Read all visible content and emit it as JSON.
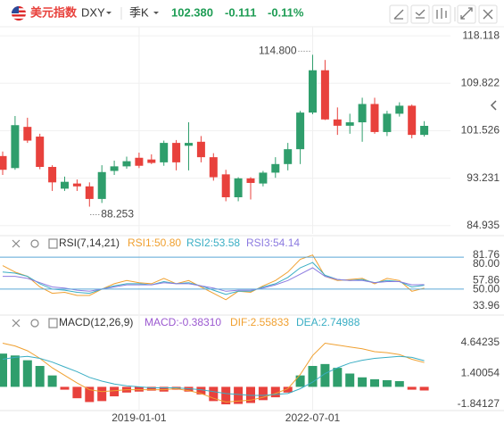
{
  "header": {
    "name": "美元指数",
    "symbol": "DXY",
    "period": "季K",
    "price": "102.380",
    "change": "-0.111",
    "change_pct": "-0.11%"
  },
  "chart_data": [
    {
      "type": "candlestick",
      "categories": [
        null,
        null,
        null,
        null,
        null,
        null,
        null,
        null,
        null,
        null,
        null,
        "2019-01-01",
        null,
        null,
        null,
        null,
        null,
        null,
        null,
        null,
        null,
        null,
        null,
        null,
        null,
        "2022-07-01",
        null,
        null,
        null,
        null,
        null,
        null,
        null,
        null,
        null
      ],
      "open": [
        97.1,
        95.0,
        102.2,
        100.5,
        95.2,
        91.4,
        92.3,
        91.8,
        89.6,
        94.5,
        95.3,
        96.8,
        96.5,
        96.0,
        99.4,
        98.9,
        99.6,
        96.9,
        93.9,
        89.9,
        93.2,
        92.3,
        94.2,
        95.7,
        98.3,
        104.7,
        112.1,
        103.5,
        102.4,
        103.0,
        106.2,
        101.3,
        104.5,
        105.9,
        100.8
      ],
      "high": [
        97.9,
        104.1,
        103.8,
        101.0,
        95.5,
        93.5,
        93.0,
        92.5,
        95.5,
        96.3,
        97.0,
        97.7,
        97.4,
        99.8,
        99.9,
        103.0,
        100.6,
        97.6,
        94.7,
        93.4,
        93.4,
        94.5,
        96.9,
        99.4,
        105.0,
        114.8,
        113.9,
        105.6,
        104.5,
        107.3,
        107.3,
        105.0,
        106.5,
        106.1,
        103.2
      ],
      "low": [
        93.8,
        94.7,
        99.4,
        94.8,
        91.0,
        91.0,
        91.0,
        88.253,
        88.9,
        93.8,
        94.9,
        95.0,
        95.7,
        95.4,
        94.6,
        94.6,
        96.0,
        92.8,
        89.2,
        89.2,
        89.5,
        91.8,
        93.3,
        94.6,
        95.7,
        104.4,
        103.4,
        100.8,
        101.0,
        99.6,
        101.0,
        100.6,
        104.0,
        100.2,
        100.5
      ],
      "close": [
        94.7,
        102.5,
        99.8,
        95.2,
        92.5,
        92.6,
        91.8,
        89.6,
        94.3,
        95.3,
        96.2,
        95.4,
        95.9,
        99.4,
        96.0,
        99.4,
        96.9,
        93.4,
        89.9,
        93.2,
        92.4,
        94.2,
        95.7,
        98.3,
        104.7,
        112.1,
        103.5,
        102.4,
        103.0,
        106.2,
        101.3,
        104.5,
        105.9,
        100.8,
        102.38
      ],
      "up_color": "#2f9e6c",
      "down_color": "#e8413c",
      "ylim": [
        83.5,
        119.7
      ],
      "yticks": [
        118.118,
        109.822,
        101.526,
        93.231,
        84.935
      ],
      "grid": true,
      "annotations": [
        "114.800",
        "88.253"
      ]
    },
    {
      "type": "line",
      "title": "RSI(7,14,21)",
      "series": [
        {
          "name": "RSI1:50.80",
          "color": "#f0a030",
          "values": [
            72,
            66,
            62,
            52,
            46,
            47,
            44,
            44,
            50,
            55,
            58,
            56,
            55,
            60,
            55,
            58,
            52,
            46,
            40,
            48,
            47,
            53,
            58,
            66,
            78,
            82,
            62,
            58,
            59,
            60,
            55,
            60,
            58,
            48,
            50.8
          ]
        },
        {
          "name": "RSI2:53.58",
          "color": "#3aaec4",
          "values": [
            66,
            65,
            62,
            55,
            50,
            49,
            47,
            46,
            50,
            53,
            55,
            55,
            54,
            57,
            55,
            56,
            53,
            49,
            45,
            48,
            48,
            52,
            55,
            61,
            70,
            75,
            63,
            59,
            58,
            59,
            56,
            58,
            57,
            52,
            53.58
          ]
        },
        {
          "name": "RSI3:54.14",
          "color": "#8c7be0",
          "values": [
            62,
            62,
            60,
            56,
            52,
            51,
            49,
            48,
            50,
            52,
            54,
            54,
            54,
            56,
            55,
            55,
            53,
            51,
            48,
            49,
            49,
            51,
            54,
            58,
            64,
            70,
            62,
            59,
            58,
            58,
            56,
            57,
            57,
            54,
            54.14
          ]
        }
      ],
      "ylim": [
        33.96,
        81.76
      ],
      "yticks": [
        {
          "value": 80,
          "label": "80.00"
        },
        {
          "value": 50,
          "label": "50.00"
        }
      ],
      "tick_color": "#5aa8d8",
      "axis_labels": [
        {
          "value": 81.76,
          "label": "81.76"
        },
        {
          "value": 57.86,
          "label": "57.86"
        },
        {
          "value": 33.96,
          "label": "33.96"
        }
      ]
    },
    {
      "type": "macd",
      "title": "MACD(12,26,9)",
      "histogram": {
        "name": "MACD:-0.38310",
        "color": "#9b59d0",
        "up_color": "#2f9e6c",
        "down_color": "#e8413c",
        "values": [
          3.5,
          3.3,
          2.8,
          2.2,
          1.2,
          -0.3,
          -1.2,
          -1.6,
          -1.5,
          -1.0,
          -0.6,
          -0.5,
          -0.4,
          -0.5,
          -0.3,
          -0.5,
          -0.8,
          -1.5,
          -1.84127,
          -1.8,
          -1.7,
          -1.4,
          -1.1,
          -0.6,
          1.2,
          2.2,
          2.4,
          2.0,
          1.4,
          1.0,
          0.8,
          0.7,
          0.6,
          -0.3,
          -0.3831
        ]
      },
      "series": [
        {
          "name": "DIF:2.55833",
          "color": "#f0a030",
          "values": [
            4.6,
            4.3,
            3.8,
            3.0,
            2.0,
            1.2,
            0.4,
            -0.3,
            -0.5,
            -0.4,
            -0.3,
            -0.3,
            -0.3,
            -0.3,
            -0.2,
            -0.4,
            -0.7,
            -1.2,
            -1.6,
            -1.5,
            -1.4,
            -1.1,
            -0.7,
            -0.2,
            1.3,
            3.3,
            4.6,
            4.4,
            4.2,
            4.0,
            3.7,
            3.6,
            3.4,
            2.9,
            2.55833
          ]
        },
        {
          "name": "DEA:2.74988",
          "color": "#3aaec4",
          "values": [
            2.9,
            3.1,
            3.2,
            3.0,
            2.6,
            2.1,
            1.6,
            1.0,
            0.6,
            0.3,
            0.1,
            0.0,
            -0.1,
            -0.1,
            -0.1,
            -0.2,
            -0.3,
            -0.5,
            -0.7,
            -0.8,
            -0.9,
            -0.9,
            -0.8,
            -0.7,
            -0.2,
            0.5,
            1.4,
            2.0,
            2.5,
            2.8,
            3.0,
            3.1,
            3.2,
            3.1,
            2.74988
          ]
        }
      ],
      "ylim": [
        -1.84127,
        4.64235
      ],
      "yticks": [
        4.64235,
        1.40054,
        -1.84127
      ]
    }
  ]
}
